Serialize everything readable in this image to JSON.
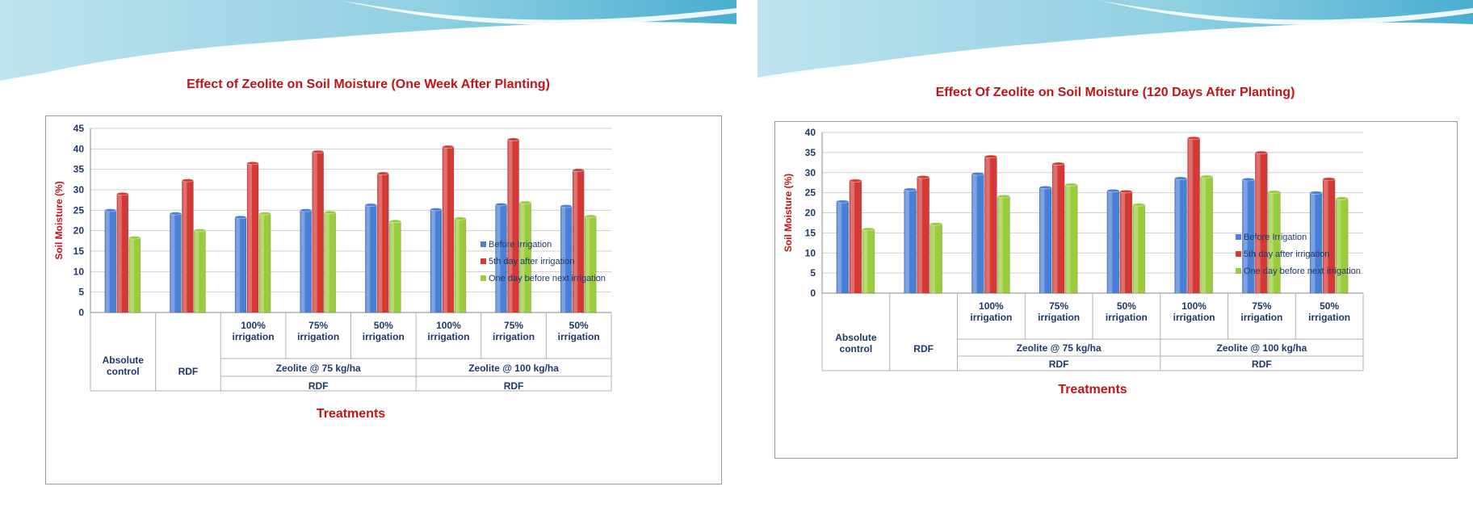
{
  "colors": {
    "before": "#4a7fd6",
    "fifth": "#d43a35",
    "oneday": "#9acc3c",
    "title": "#c0141a",
    "axis_text": "#1f3864"
  },
  "chart_data": [
    {
      "type": "bar",
      "title": "Effect of Zeolite  on Soil Moisture (One Week After Planting)",
      "ylabel": "Soil Moisture (%)",
      "xlabel": "Treatments",
      "ylim": [
        0,
        45
      ],
      "yticks": [
        "0",
        "5",
        "10",
        "15",
        "20",
        "25",
        "30",
        "35",
        "40",
        "45"
      ],
      "categories": [
        "Absolute control",
        "RDF",
        "100% irrigation",
        "75% irrigation",
        "50% irrigation",
        "100% irrigation",
        "75% irrigation",
        "50% irrigation"
      ],
      "level1": [
        {
          "lines": [
            "Absolute",
            "control"
          ]
        },
        {
          "lines": [
            "RDF"
          ]
        },
        {
          "lines": [
            "100%",
            "irrigation"
          ]
        },
        {
          "lines": [
            "75%",
            "irrigation"
          ]
        },
        {
          "lines": [
            "50%",
            "irrigation"
          ]
        },
        {
          "lines": [
            "100%",
            "irrigation"
          ]
        },
        {
          "lines": [
            "75%",
            "irrigation"
          ]
        },
        {
          "lines": [
            "50%",
            "irrigation"
          ]
        }
      ],
      "level2": [
        {
          "label": "Zeolite @ 75 kg/ha",
          "start": 2,
          "end": 4
        },
        {
          "label": "Zeolite @ 100 kg/ha",
          "start": 5,
          "end": 7
        }
      ],
      "level3": [
        {
          "label": "RDF",
          "start": 2,
          "end": 4
        },
        {
          "label": "RDF",
          "start": 5,
          "end": 7
        }
      ],
      "series": [
        {
          "name": "Before Irrigation",
          "values": [
            25.0,
            24.2,
            23.3,
            25.0,
            26.3,
            25.2,
            26.4,
            26.0
          ]
        },
        {
          "name": "5th day after irrigation",
          "values": [
            29.0,
            32.3,
            36.5,
            39.3,
            34.0,
            40.5,
            42.3,
            34.8
          ]
        },
        {
          "name": "One day before next irrigation",
          "values": [
            18.3,
            20.1,
            24.2,
            24.5,
            22.3,
            23.0,
            26.9,
            23.5
          ]
        }
      ],
      "legend_position": "right",
      "grid": true
    },
    {
      "type": "bar",
      "title": "Effect Of Zeolite  on Soil Moisture (120 Days After Planting)",
      "ylabel": "Soil Moisture (%)",
      "xlabel": "Treatments",
      "ylim": [
        0,
        40
      ],
      "yticks": [
        "0",
        "5",
        "10",
        "15",
        "20",
        "25",
        "30",
        "35",
        "40"
      ],
      "categories": [
        "Absolute control",
        "RDF",
        "100% irrigation",
        "75% irrigation",
        "50% irrigation",
        "100% irrigation",
        "75% irrigation",
        "50% irrigation"
      ],
      "level1": [
        {
          "lines": [
            "Absolute",
            "control"
          ]
        },
        {
          "lines": [
            "RDF"
          ]
        },
        {
          "lines": [
            "100%",
            "irrigation"
          ]
        },
        {
          "lines": [
            "75%",
            "irrigation"
          ]
        },
        {
          "lines": [
            "50%",
            "irrigation"
          ]
        },
        {
          "lines": [
            "100%",
            "irrigation"
          ]
        },
        {
          "lines": [
            "75%",
            "irrigation"
          ]
        },
        {
          "lines": [
            "50%",
            "irrigation"
          ]
        }
      ],
      "level2": [
        {
          "label": "Zeolite @ 75 kg/ha",
          "start": 2,
          "end": 4
        },
        {
          "label": "Zeolite @ 100 kg/ha",
          "start": 5,
          "end": 7
        }
      ],
      "level3": [
        {
          "label": "RDF",
          "start": 2,
          "end": 4
        },
        {
          "label": "RDF",
          "start": 5,
          "end": 7
        }
      ],
      "series": [
        {
          "name": "Before Irrigation",
          "values": [
            22.8,
            25.8,
            29.7,
            26.3,
            25.5,
            28.6,
            28.3,
            25.0
          ]
        },
        {
          "name": "5th day after irrigation",
          "values": [
            28.0,
            28.9,
            34.0,
            32.2,
            25.3,
            38.6,
            35.0,
            28.4
          ]
        },
        {
          "name": "One day before next irrigation",
          "values": [
            15.9,
            17.2,
            24.1,
            27.0,
            22.0,
            29.0,
            25.2,
            23.6
          ]
        }
      ],
      "legend_position": "right",
      "grid": true
    }
  ]
}
